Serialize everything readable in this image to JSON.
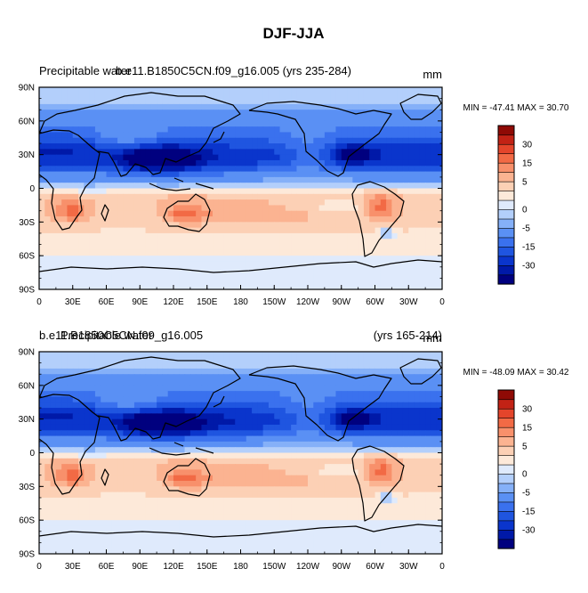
{
  "chart_data": {
    "type": "heatmap",
    "title": "DJF-JJA",
    "colorbar": {
      "levels": [
        -35,
        -30,
        -25,
        -20,
        -15,
        -10,
        -5,
        -2.5,
        0,
        2.5,
        5,
        10,
        15,
        20,
        25,
        30,
        35
      ],
      "tick_labels": [
        "30",
        "15",
        "5",
        "0",
        "-5",
        "-15",
        "-30"
      ],
      "colors": [
        "#00007f",
        "#0019a8",
        "#0a35cc",
        "#1f55e0",
        "#3a71ee",
        "#5a90f4",
        "#85b0f8",
        "#b3cffb",
        "#dfeafc",
        "#fde9d9",
        "#fcd0b5",
        "#fbb391",
        "#f8906b",
        "#f26a45",
        "#e4452b",
        "#c22215",
        "#8f0a05"
      ]
    },
    "x_ticks": [
      "0",
      "30E",
      "60E",
      "90E",
      "120E",
      "150E",
      "180",
      "150W",
      "120W",
      "90W",
      "60W",
      "30W",
      "0"
    ],
    "y_ticks": [
      "90N",
      "60N",
      "30N",
      "0",
      "30S",
      "60S",
      "90S"
    ],
    "xlim": [
      0,
      360
    ],
    "ylim": [
      -90,
      90
    ],
    "panels": [
      {
        "left_title_a": "Precipitable water",
        "left_title_b": "b.e11.B1850C5CN.f09_g16.005 (yrs 235-284)",
        "right_title": "mm",
        "stats": "MIN = -47.41 MAX =  30.70",
        "min": -47.41,
        "max": 30.7
      },
      {
        "left_title_a": "b.e11.B1850C5CN.f09_g16.005",
        "left_title_b": "Precipitable water",
        "right_title_a": "(yrs 165-214)",
        "right_title_b": "mm",
        "stats": "MIN = -48.09 MAX =  30.42",
        "min": -48.09,
        "max": 30.42
      }
    ]
  }
}
